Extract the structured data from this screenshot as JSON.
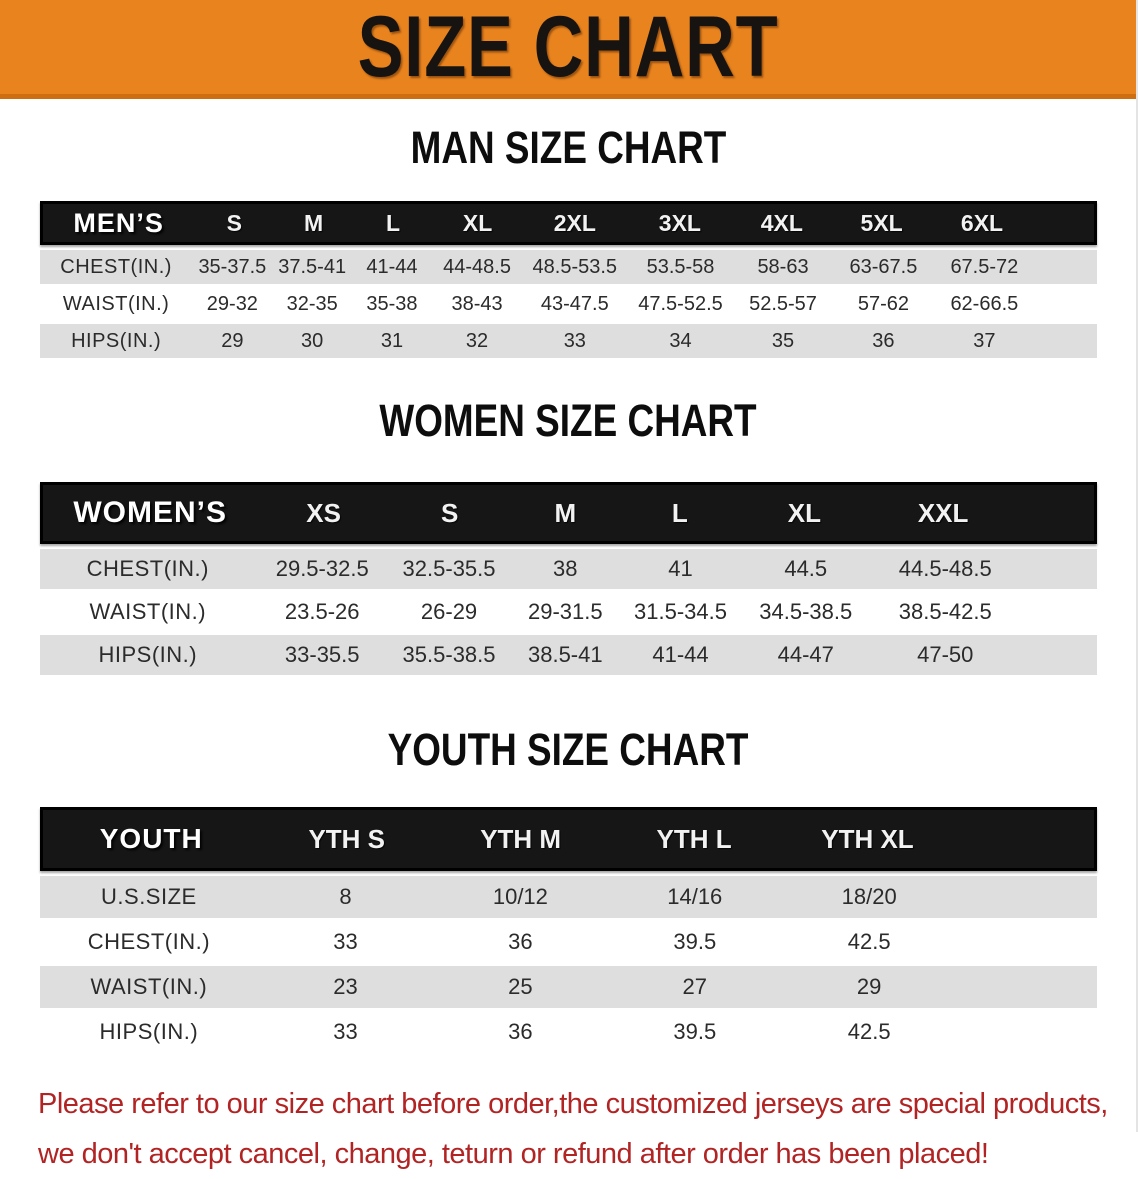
{
  "banner": {
    "title": "SIZE CHART",
    "bg_color": "#E8831E",
    "text_color": "#161310"
  },
  "sections": [
    {
      "heading": "MAN SIZE CHART",
      "table": {
        "label": "MEN’S",
        "columns": [
          "S",
          "M",
          "L",
          "XL",
          "2XL",
          "3XL",
          "4XL",
          "5XL",
          "6XL"
        ],
        "rows": [
          {
            "label": "CHEST(IN.)",
            "values": [
              "35-37.5",
              "37.5-41",
              "41-44",
              "44-48.5",
              "48.5-53.5",
              "53.5-58",
              "58-63",
              "63-67.5",
              "67.5-72"
            ]
          },
          {
            "label": "WAIST(IN.)",
            "values": [
              "29-32",
              "32-35",
              "35-38",
              "38-43",
              "43-47.5",
              "47.5-52.5",
              "52.5-57",
              "57-62",
              "62-66.5"
            ]
          },
          {
            "label": "HIPS(IN.)",
            "values": [
              "29",
              "30",
              "31",
              "32",
              "33",
              "34",
              "35",
              "36",
              "37"
            ]
          }
        ]
      }
    },
    {
      "heading": "WOMEN SIZE CHART",
      "table": {
        "label": "WOMEN’S",
        "columns": [
          "XS",
          "S",
          "M",
          "L",
          "XL",
          "XXL"
        ],
        "rows": [
          {
            "label": "CHEST(IN.)",
            "values": [
              "29.5-32.5",
              "32.5-35.5",
              "38",
              "41",
              "44.5",
              "44.5-48.5"
            ]
          },
          {
            "label": "WAIST(IN.)",
            "values": [
              "23.5-26",
              "26-29",
              "29-31.5",
              "31.5-34.5",
              "34.5-38.5",
              "38.5-42.5"
            ]
          },
          {
            "label": "HIPS(IN.)",
            "values": [
              "33-35.5",
              "35.5-38.5",
              "38.5-41",
              "41-44",
              "44-47",
              "47-50"
            ]
          }
        ]
      }
    },
    {
      "heading": "YOUTH SIZE CHART",
      "table": {
        "label": "YOUTH",
        "columns": [
          "YTH S",
          "YTH M",
          "YTH L",
          "YTH XL"
        ],
        "rows": [
          {
            "label": "U.S.SIZE",
            "values": [
              "8",
              "10/12",
              "14/16",
              "18/20"
            ]
          },
          {
            "label": "CHEST(IN.)",
            "values": [
              "33",
              "36",
              "39.5",
              "42.5"
            ]
          },
          {
            "label": "WAIST(IN.)",
            "values": [
              "23",
              "25",
              "27",
              "29"
            ]
          },
          {
            "label": "HIPS(IN.)",
            "values": [
              "33",
              "36",
              "39.5",
              "42.5"
            ]
          }
        ]
      }
    }
  ],
  "disclaimer": {
    "line1": "Please refer to our size chart before order,the customized jerseys are special products,",
    "line2": "we don't accept cancel, change, teturn or refund after order has been placed!",
    "color": "#B22424"
  }
}
